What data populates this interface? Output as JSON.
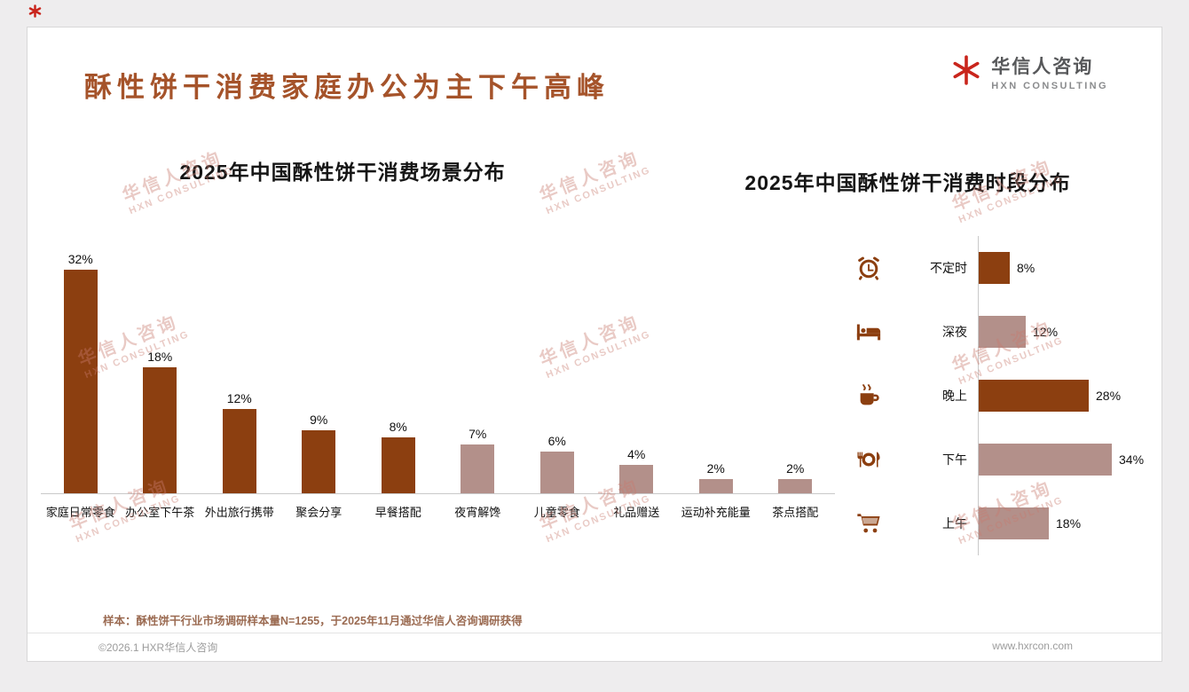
{
  "page": {
    "title": "酥性饼干消费家庭办公为主下午高峰",
    "logo": {
      "name_cn": "华信人咨询",
      "name_en": "HXN CONSULTING",
      "mark_icon": "red-starburst-icon"
    },
    "watermark": {
      "line1": "华信人咨询",
      "line2": "HXN CONSULTING"
    },
    "footer": {
      "sample_note": "样本：酥性饼干行业市场调研样本量N=1255，于2025年11月通过华信人咨询调研获得",
      "copyright": "©2026.1 HXR华信人咨询",
      "website": "www.hxrcon.com"
    },
    "colors": {
      "dark": "#8C3F10",
      "light": "#B3908A",
      "title": "#A5532A",
      "logo_red": "#C9251C",
      "watermark": "rgba(200,122,110,0.40)"
    }
  },
  "chart_data": [
    {
      "type": "bar",
      "title": "2025年中国酥性饼干消费场景分布",
      "categories": [
        "家庭日常零食",
        "办公室下午茶",
        "外出旅行携带",
        "聚会分享",
        "早餐搭配",
        "夜宵解馋",
        "儿童零食",
        "礼品赠送",
        "运动补充能量",
        "茶点搭配"
      ],
      "values": [
        32,
        18,
        12,
        9,
        8,
        7,
        6,
        4,
        2,
        2
      ],
      "unit": "%",
      "bar_colors": [
        "dark",
        "dark",
        "dark",
        "dark",
        "dark",
        "light",
        "light",
        "light",
        "light",
        "light"
      ],
      "ylim": [
        0,
        32
      ],
      "grid": false,
      "value_labels": "above-bars",
      "legend": "none"
    },
    {
      "type": "bar-horizontal",
      "title": "2025年中国酥性饼干消费时段分布",
      "categories": [
        "不定时",
        "深夜",
        "晚上",
        "下午",
        "上午"
      ],
      "values": [
        8,
        12,
        28,
        34,
        18
      ],
      "unit": "%",
      "bar_colors": [
        "dark",
        "light",
        "dark",
        "light",
        "light"
      ],
      "icons": [
        "alarm-clock",
        "bed",
        "coffee-cup",
        "dining-plate",
        "shopping-cart"
      ],
      "xlim": [
        0,
        34
      ],
      "grid": false,
      "value_labels": "right-of-bars",
      "legend": "none"
    }
  ]
}
